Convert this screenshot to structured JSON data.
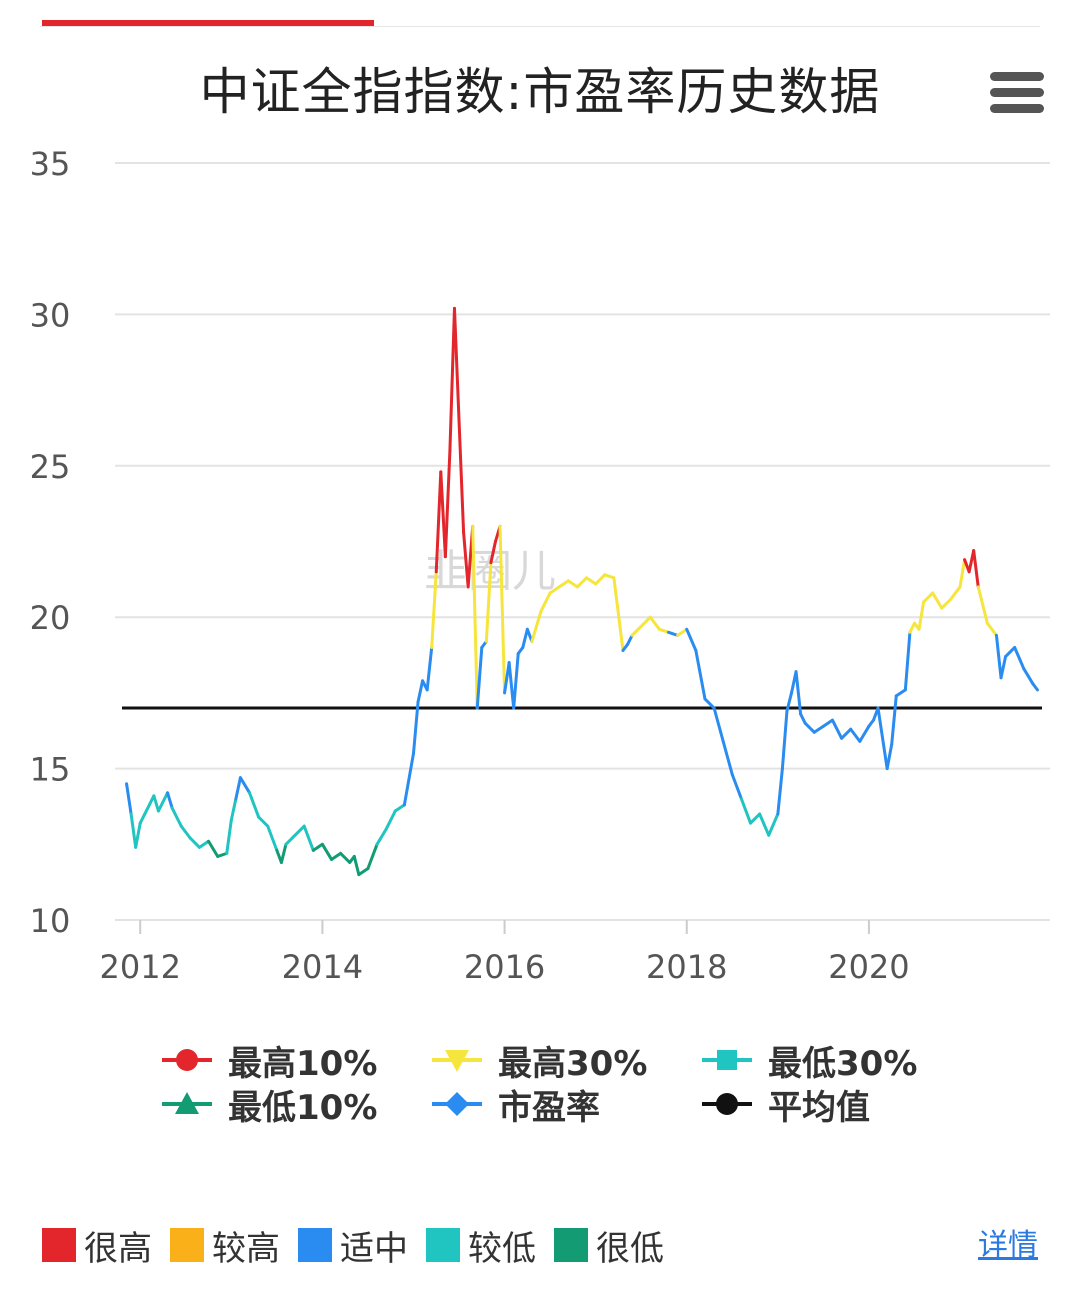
{
  "page": {
    "title": "中证全指指数:市盈率历史数据",
    "watermark": "韭圈儿"
  },
  "colors": {
    "accent": "#e2262c",
    "very_high": "#e2262c",
    "high": "#f5e53c",
    "mid": "#2a8cf0",
    "low": "#20c4c0",
    "very_low": "#139c73",
    "mean_line": "#111111",
    "grid": "#e3e3e3"
  },
  "legend": {
    "items": [
      {
        "key": "top10",
        "label": "最高10%",
        "symbol": "circle",
        "color": "#e2262c"
      },
      {
        "key": "top30",
        "label": "最高30%",
        "symbol": "triangle-down",
        "color": "#f5e53c"
      },
      {
        "key": "bottom30",
        "label": "最低30%",
        "symbol": "square",
        "color": "#20c4c0"
      },
      {
        "key": "bottom10",
        "label": "最低10%",
        "symbol": "triangle-up",
        "color": "#139c73"
      },
      {
        "key": "pe",
        "label": "市盈率",
        "symbol": "diamond",
        "color": "#2a8cf0"
      },
      {
        "key": "mean",
        "label": "平均值",
        "symbol": "circle",
        "color": "#111111"
      }
    ]
  },
  "bands": {
    "items": [
      {
        "label": "很高",
        "color": "#e2262c"
      },
      {
        "label": "较高",
        "color": "#f9b019"
      },
      {
        "label": "适中",
        "color": "#2a8cf0"
      },
      {
        "label": "较低",
        "color": "#20c4c0"
      },
      {
        "label": "很低",
        "color": "#139c73"
      }
    ]
  },
  "footer": {
    "details_label": "详情"
  },
  "chart_data": {
    "type": "line",
    "title": "中证全指指数:市盈率历史数据",
    "xlabel": "",
    "ylabel": "",
    "ylim": [
      10,
      35
    ],
    "yticks": [
      10,
      15,
      20,
      25,
      30,
      35
    ],
    "xticks": [
      2012,
      2014,
      2016,
      2018,
      2020
    ],
    "xlim": [
      2011.8,
      2021.9
    ],
    "grid": true,
    "mean": 17.0,
    "thresholds": {
      "top10": 21.5,
      "top30": 19.5,
      "bottom30": 13.9,
      "bottom10": 12.5
    },
    "series": [
      {
        "name": "市盈率",
        "x": [
          2011.85,
          2011.9,
          2011.95,
          2012.0,
          2012.05,
          2012.15,
          2012.2,
          2012.3,
          2012.35,
          2012.45,
          2012.55,
          2012.65,
          2012.75,
          2012.85,
          2012.95,
          2013.0,
          2013.05,
          2013.1,
          2013.2,
          2013.3,
          2013.4,
          2013.5,
          2013.55,
          2013.6,
          2013.7,
          2013.8,
          2013.9,
          2014.0,
          2014.1,
          2014.2,
          2014.3,
          2014.35,
          2014.4,
          2014.5,
          2014.6,
          2014.7,
          2014.8,
          2014.9,
          2015.0,
          2015.05,
          2015.1,
          2015.15,
          2015.2,
          2015.25,
          2015.3,
          2015.35,
          2015.4,
          2015.45,
          2015.5,
          2015.55,
          2015.6,
          2015.65,
          2015.7,
          2015.75,
          2015.8,
          2015.85,
          2015.9,
          2015.95,
          2016.0,
          2016.05,
          2016.1,
          2016.15,
          2016.2,
          2016.25,
          2016.3,
          2016.4,
          2016.5,
          2016.6,
          2016.7,
          2016.8,
          2016.9,
          2017.0,
          2017.1,
          2017.2,
          2017.3,
          2017.35,
          2017.4,
          2017.5,
          2017.6,
          2017.7,
          2017.8,
          2017.9,
          2018.0,
          2018.1,
          2018.2,
          2018.3,
          2018.4,
          2018.5,
          2018.6,
          2018.7,
          2018.8,
          2018.9,
          2019.0,
          2019.05,
          2019.1,
          2019.15,
          2019.2,
          2019.25,
          2019.3,
          2019.4,
          2019.5,
          2019.6,
          2019.7,
          2019.8,
          2019.9,
          2020.0,
          2020.05,
          2020.1,
          2020.2,
          2020.25,
          2020.3,
          2020.4,
          2020.45,
          2020.5,
          2020.55,
          2020.6,
          2020.7,
          2020.8,
          2020.9,
          2021.0,
          2021.05,
          2021.1,
          2021.15,
          2021.2,
          2021.3,
          2021.4,
          2021.45,
          2021.5,
          2021.6,
          2021.7,
          2021.8,
          2021.85
        ],
        "values": [
          14.5,
          13.5,
          12.4,
          13.2,
          13.5,
          14.1,
          13.6,
          14.2,
          13.7,
          13.1,
          12.7,
          12.4,
          12.6,
          12.1,
          12.2,
          13.3,
          14.0,
          14.7,
          14.2,
          13.4,
          13.1,
          12.3,
          11.9,
          12.5,
          12.8,
          13.1,
          12.3,
          12.5,
          12.0,
          12.2,
          11.9,
          12.1,
          11.5,
          11.7,
          12.5,
          13.0,
          13.6,
          13.8,
          15.5,
          17.2,
          17.9,
          17.6,
          19.0,
          21.5,
          24.8,
          22.0,
          25.5,
          30.2,
          26.5,
          22.8,
          21.0,
          23.0,
          17.0,
          19.0,
          19.2,
          21.8,
          22.5,
          23.0,
          17.5,
          18.5,
          17.0,
          18.8,
          19.0,
          19.6,
          19.2,
          20.2,
          20.8,
          21.0,
          21.2,
          21.0,
          21.3,
          21.1,
          21.4,
          21.3,
          18.9,
          19.1,
          19.4,
          19.7,
          20.0,
          19.6,
          19.5,
          19.4,
          19.6,
          18.9,
          17.3,
          17.0,
          15.9,
          14.8,
          14.0,
          13.2,
          13.5,
          12.8,
          13.5,
          15.0,
          16.9,
          17.5,
          18.2,
          16.8,
          16.5,
          16.2,
          16.4,
          16.6,
          16.0,
          16.3,
          15.9,
          16.4,
          16.6,
          17.0,
          15.0,
          15.8,
          17.4,
          17.6,
          19.5,
          19.8,
          19.6,
          20.5,
          20.8,
          20.3,
          20.6,
          21.0,
          21.9,
          21.5,
          22.2,
          21.0,
          19.8,
          19.4,
          18.0,
          18.7,
          19.0,
          18.3,
          17.8,
          17.6
        ]
      }
    ]
  }
}
